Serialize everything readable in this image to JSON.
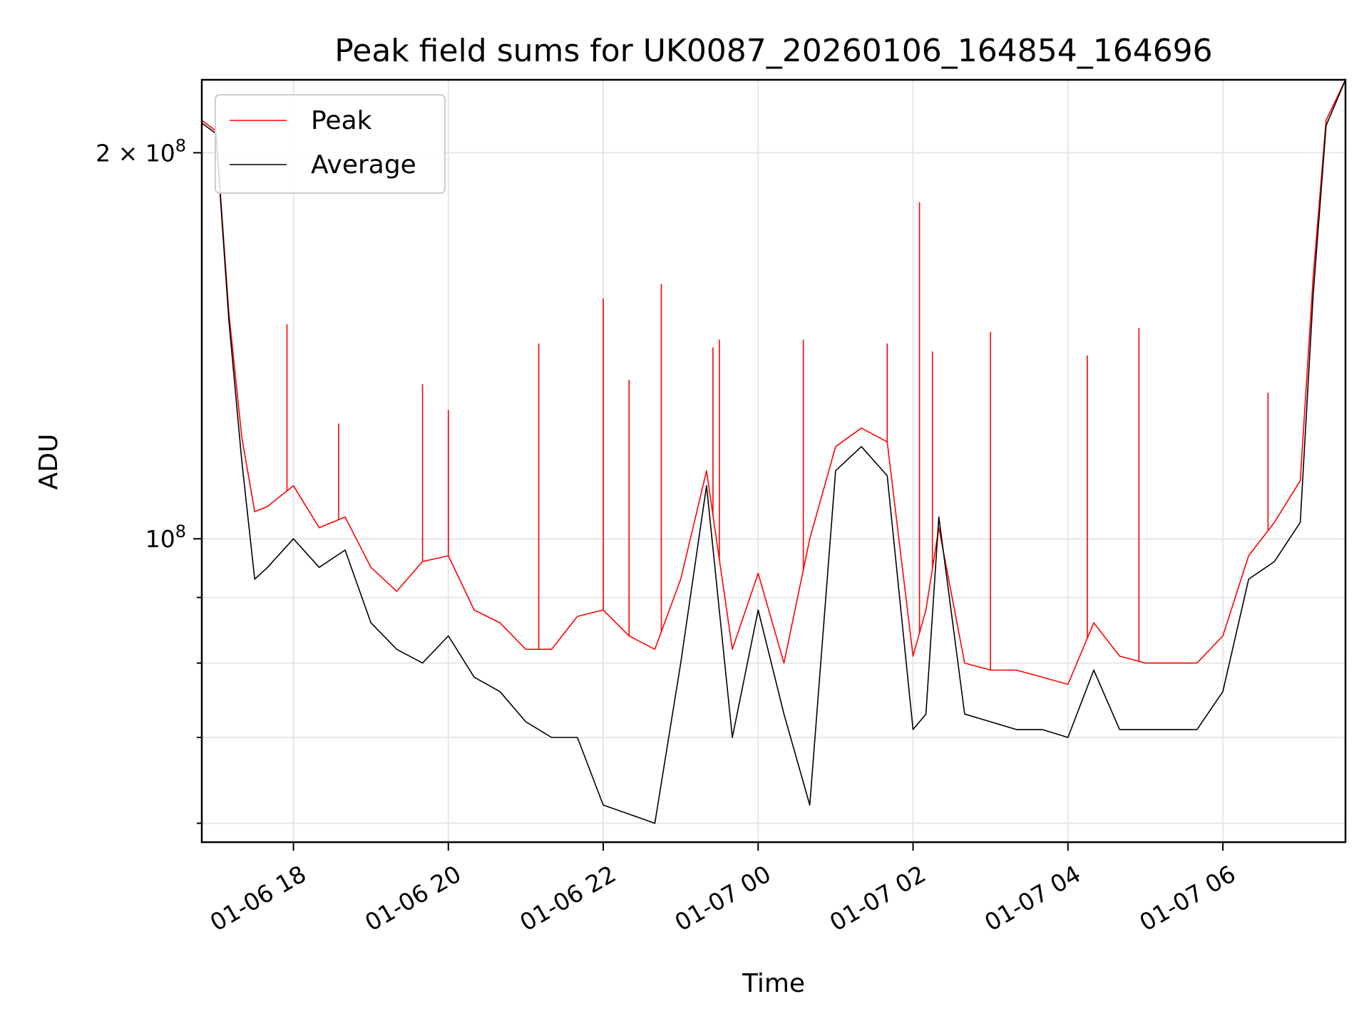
{
  "chart_data": {
    "type": "line",
    "title": "Peak field sums for UK0087_20260106_164854_164696",
    "xlabel": "Time",
    "ylabel": "ADU",
    "y_scale": "log",
    "grid": true,
    "legend_position": "top-left",
    "x_range": [
      "2026-01-06 16:49",
      "2026-01-07 07:35"
    ],
    "ylim": [
      58000000,
      228000000
    ],
    "x_ticks": [
      {
        "value": "2026-01-06 18:00",
        "label": "01-06 18"
      },
      {
        "value": "2026-01-06 20:00",
        "label": "01-06 20"
      },
      {
        "value": "2026-01-06 22:00",
        "label": "01-06 22"
      },
      {
        "value": "2026-01-07 00:00",
        "label": "01-07 00"
      },
      {
        "value": "2026-01-07 02:00",
        "label": "01-07 02"
      },
      {
        "value": "2026-01-07 04:00",
        "label": "01-07 04"
      },
      {
        "value": "2026-01-07 06:00",
        "label": "01-07 06"
      }
    ],
    "y_major_ticks": [
      {
        "value": 100000000,
        "base": "10",
        "exp": "8",
        "mantissa": ""
      },
      {
        "value": 200000000,
        "base": "10",
        "exp": "8",
        "mantissa": "2 × "
      }
    ],
    "y_minor_ticks": [
      60000000,
      70000000,
      80000000,
      90000000
    ],
    "colors": {
      "peak": "#ff0000",
      "average": "#000000"
    },
    "series": [
      {
        "name": "Peak",
        "color": "#ff0000",
        "x": [
          "2026-01-06 16:49",
          "2026-01-06 17:00",
          "2026-01-06 17:10",
          "2026-01-06 17:20",
          "2026-01-06 17:30",
          "2026-01-06 17:40",
          "2026-01-06 18:00",
          "2026-01-06 18:20",
          "2026-01-06 18:40",
          "2026-01-06 19:00",
          "2026-01-06 19:20",
          "2026-01-06 19:40",
          "2026-01-06 20:00",
          "2026-01-06 20:20",
          "2026-01-06 20:40",
          "2026-01-06 21:00",
          "2026-01-06 21:20",
          "2026-01-06 21:40",
          "2026-01-06 22:00",
          "2026-01-06 22:20",
          "2026-01-06 22:40",
          "2026-01-06 23:00",
          "2026-01-06 23:20",
          "2026-01-06 23:40",
          "2026-01-07 00:00",
          "2026-01-07 00:20",
          "2026-01-07 00:40",
          "2026-01-07 01:00",
          "2026-01-07 01:20",
          "2026-01-07 01:40",
          "2026-01-07 02:00",
          "2026-01-07 02:10",
          "2026-01-07 02:20",
          "2026-01-07 02:40",
          "2026-01-07 03:00",
          "2026-01-07 03:20",
          "2026-01-07 03:40",
          "2026-01-07 04:00",
          "2026-01-07 04:20",
          "2026-01-07 04:40",
          "2026-01-07 05:00",
          "2026-01-07 05:20",
          "2026-01-07 05:40",
          "2026-01-07 06:00",
          "2026-01-07 06:20",
          "2026-01-07 06:40",
          "2026-01-07 07:00",
          "2026-01-07 07:10",
          "2026-01-07 07:20",
          "2026-01-07 07:35"
        ],
        "values": [
          212000000,
          208000000,
          150000000,
          120000000,
          105000000,
          106000000,
          110000000,
          102000000,
          104000000,
          95000000,
          91000000,
          96000000,
          97000000,
          88000000,
          86000000,
          82000000,
          82000000,
          87000000,
          88000000,
          84000000,
          82000000,
          93000000,
          113000000,
          82000000,
          94000000,
          80000000,
          100000000,
          118000000,
          122000000,
          119000000,
          81000000,
          88000000,
          102000000,
          80000000,
          79000000,
          79000000,
          78000000,
          77000000,
          86000000,
          81000000,
          80000000,
          80000000,
          80000000,
          84000000,
          97000000,
          103000000,
          111000000,
          160000000,
          212000000,
          228000000
        ],
        "spikes": [
          {
            "x": "2026-01-06 17:55",
            "value": 147000000
          },
          {
            "x": "2026-01-06 18:35",
            "value": 123000000
          },
          {
            "x": "2026-01-06 19:40",
            "value": 132000000
          },
          {
            "x": "2026-01-06 20:00",
            "value": 126000000
          },
          {
            "x": "2026-01-06 21:10",
            "value": 142000000
          },
          {
            "x": "2026-01-06 22:00",
            "value": 154000000
          },
          {
            "x": "2026-01-06 22:20",
            "value": 133000000
          },
          {
            "x": "2026-01-06 22:45",
            "value": 158000000
          },
          {
            "x": "2026-01-06 23:25",
            "value": 141000000
          },
          {
            "x": "2026-01-06 23:30",
            "value": 143000000
          },
          {
            "x": "2026-01-07 00:35",
            "value": 143000000
          },
          {
            "x": "2026-01-07 01:40",
            "value": 142000000
          },
          {
            "x": "2026-01-07 02:05",
            "value": 183000000
          },
          {
            "x": "2026-01-07 02:15",
            "value": 140000000
          },
          {
            "x": "2026-01-07 03:00",
            "value": 145000000
          },
          {
            "x": "2026-01-07 04:15",
            "value": 139000000
          },
          {
            "x": "2026-01-07 04:55",
            "value": 146000000
          },
          {
            "x": "2026-01-07 06:35",
            "value": 130000000
          }
        ]
      },
      {
        "name": "Average",
        "color": "#000000",
        "x": [
          "2026-01-06 16:49",
          "2026-01-06 17:00",
          "2026-01-06 17:10",
          "2026-01-06 17:20",
          "2026-01-06 17:30",
          "2026-01-06 17:40",
          "2026-01-06 18:00",
          "2026-01-06 18:20",
          "2026-01-06 18:40",
          "2026-01-06 19:00",
          "2026-01-06 19:20",
          "2026-01-06 19:40",
          "2026-01-06 20:00",
          "2026-01-06 20:20",
          "2026-01-06 20:40",
          "2026-01-06 21:00",
          "2026-01-06 21:20",
          "2026-01-06 21:40",
          "2026-01-06 22:00",
          "2026-01-06 22:20",
          "2026-01-06 22:40",
          "2026-01-06 23:00",
          "2026-01-06 23:20",
          "2026-01-06 23:40",
          "2026-01-07 00:00",
          "2026-01-07 00:20",
          "2026-01-07 00:40",
          "2026-01-07 01:00",
          "2026-01-07 01:20",
          "2026-01-07 01:40",
          "2026-01-07 02:00",
          "2026-01-07 02:10",
          "2026-01-07 02:20",
          "2026-01-07 02:40",
          "2026-01-07 03:00",
          "2026-01-07 03:20",
          "2026-01-07 03:40",
          "2026-01-07 04:00",
          "2026-01-07 04:20",
          "2026-01-07 04:40",
          "2026-01-07 05:00",
          "2026-01-07 05:20",
          "2026-01-07 05:40",
          "2026-01-07 06:00",
          "2026-01-07 06:20",
          "2026-01-07 06:40",
          "2026-01-07 07:00",
          "2026-01-07 07:10",
          "2026-01-07 07:20",
          "2026-01-07 07:35"
        ],
        "values": [
          211000000,
          207000000,
          148000000,
          115000000,
          93000000,
          95000000,
          100000000,
          95000000,
          98000000,
          86000000,
          82000000,
          80000000,
          84000000,
          78000000,
          76000000,
          72000000,
          70000000,
          70000000,
          62000000,
          61000000,
          60000000,
          80000000,
          110000000,
          70000000,
          88000000,
          73000000,
          62000000,
          113000000,
          118000000,
          112000000,
          71000000,
          73000000,
          104000000,
          73000000,
          72000000,
          71000000,
          71000000,
          70000000,
          79000000,
          71000000,
          71000000,
          71000000,
          71000000,
          76000000,
          93000000,
          96000000,
          103000000,
          155000000,
          210000000,
          228000000
        ]
      }
    ]
  }
}
